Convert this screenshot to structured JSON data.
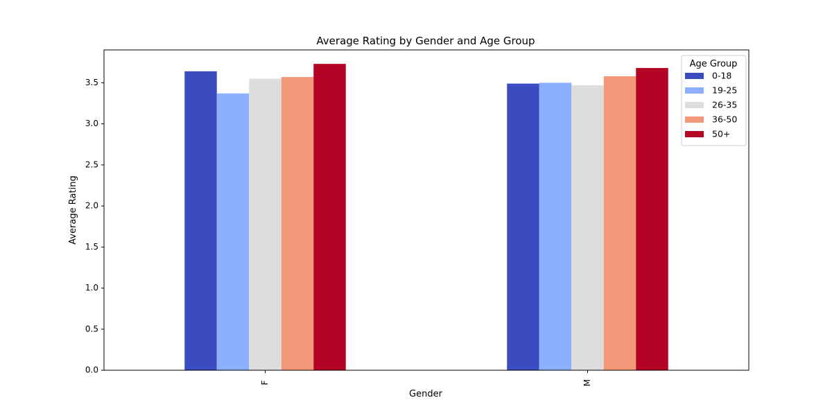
{
  "chart_data": {
    "type": "bar",
    "title": "Average Rating by Gender and Age Group",
    "xlabel": "Gender",
    "ylabel": "Average Rating",
    "categories": [
      "F",
      "M"
    ],
    "ylim": [
      0,
      3.9
    ],
    "yticks": [
      0.0,
      0.5,
      1.0,
      1.5,
      2.0,
      2.5,
      3.0,
      3.5
    ],
    "ytick_labels": [
      "0.0",
      "0.5",
      "1.0",
      "1.5",
      "2.0",
      "2.5",
      "3.0",
      "3.5"
    ],
    "grid": false,
    "legend": {
      "title": "Age Group",
      "placement": "top-right"
    },
    "series": [
      {
        "name": "0-18",
        "color": "#3b4cc0",
        "values": [
          3.64,
          3.49
        ]
      },
      {
        "name": "19-25",
        "color": "#8db0fe",
        "values": [
          3.37,
          3.5
        ]
      },
      {
        "name": "26-35",
        "color": "#dddddd",
        "values": [
          3.55,
          3.47
        ]
      },
      {
        "name": "36-50",
        "color": "#f29979",
        "values": [
          3.57,
          3.58
        ]
      },
      {
        "name": "50+",
        "color": "#b40426",
        "values": [
          3.73,
          3.68
        ]
      }
    ]
  }
}
